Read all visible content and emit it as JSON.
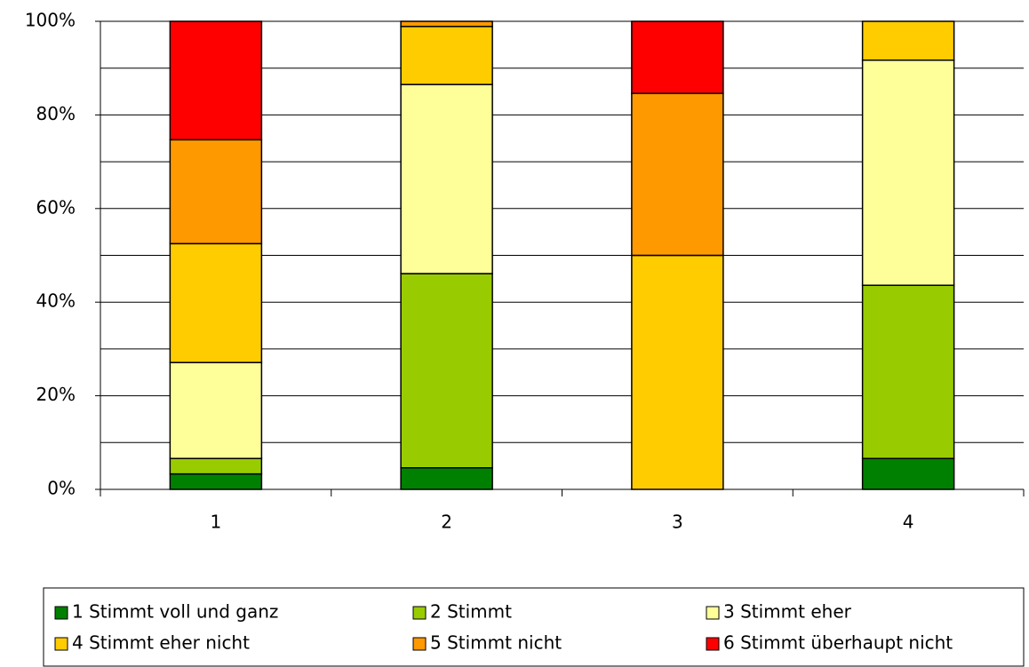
{
  "chart_data": {
    "type": "stacked_bar",
    "categories": [
      "1",
      "2",
      "3",
      "4"
    ],
    "series": [
      {
        "name": "1 Stimmt voll und ganz",
        "color": "#008000",
        "values": [
          3.3,
          4.6,
          0,
          6.6
        ]
      },
      {
        "name": "2 Stimmt",
        "color": "#99cc00",
        "values": [
          3.3,
          41.5,
          0,
          37
        ]
      },
      {
        "name": "3 Stimmt eher",
        "color": "#ffff99",
        "values": [
          20.5,
          40.4,
          0,
          48.1
        ]
      },
      {
        "name": "4 Stimmt eher nicht",
        "color": "#ffcc00",
        "values": [
          25.4,
          12.4,
          50,
          8.3
        ]
      },
      {
        "name": "5 Stimmt nicht",
        "color": "#ff9900",
        "values": [
          22.2,
          1.1,
          34.6,
          0
        ]
      },
      {
        "name": "6 Stimmt überhaupt nicht",
        "color": "#ff0000",
        "values": [
          25.3,
          0,
          15.4,
          0
        ]
      }
    ],
    "ylim": [
      0,
      100
    ],
    "yticks": [
      {
        "value": 0,
        "label": "0%"
      },
      {
        "value": 20,
        "label": "20%"
      },
      {
        "value": 40,
        "label": "40%"
      },
      {
        "value": 60,
        "label": "60%"
      },
      {
        "value": 80,
        "label": "80%"
      },
      {
        "value": 100,
        "label": "100%"
      }
    ],
    "minor_grid": [
      10,
      30,
      50,
      70,
      90
    ],
    "grid": true,
    "legend": "bottom"
  }
}
